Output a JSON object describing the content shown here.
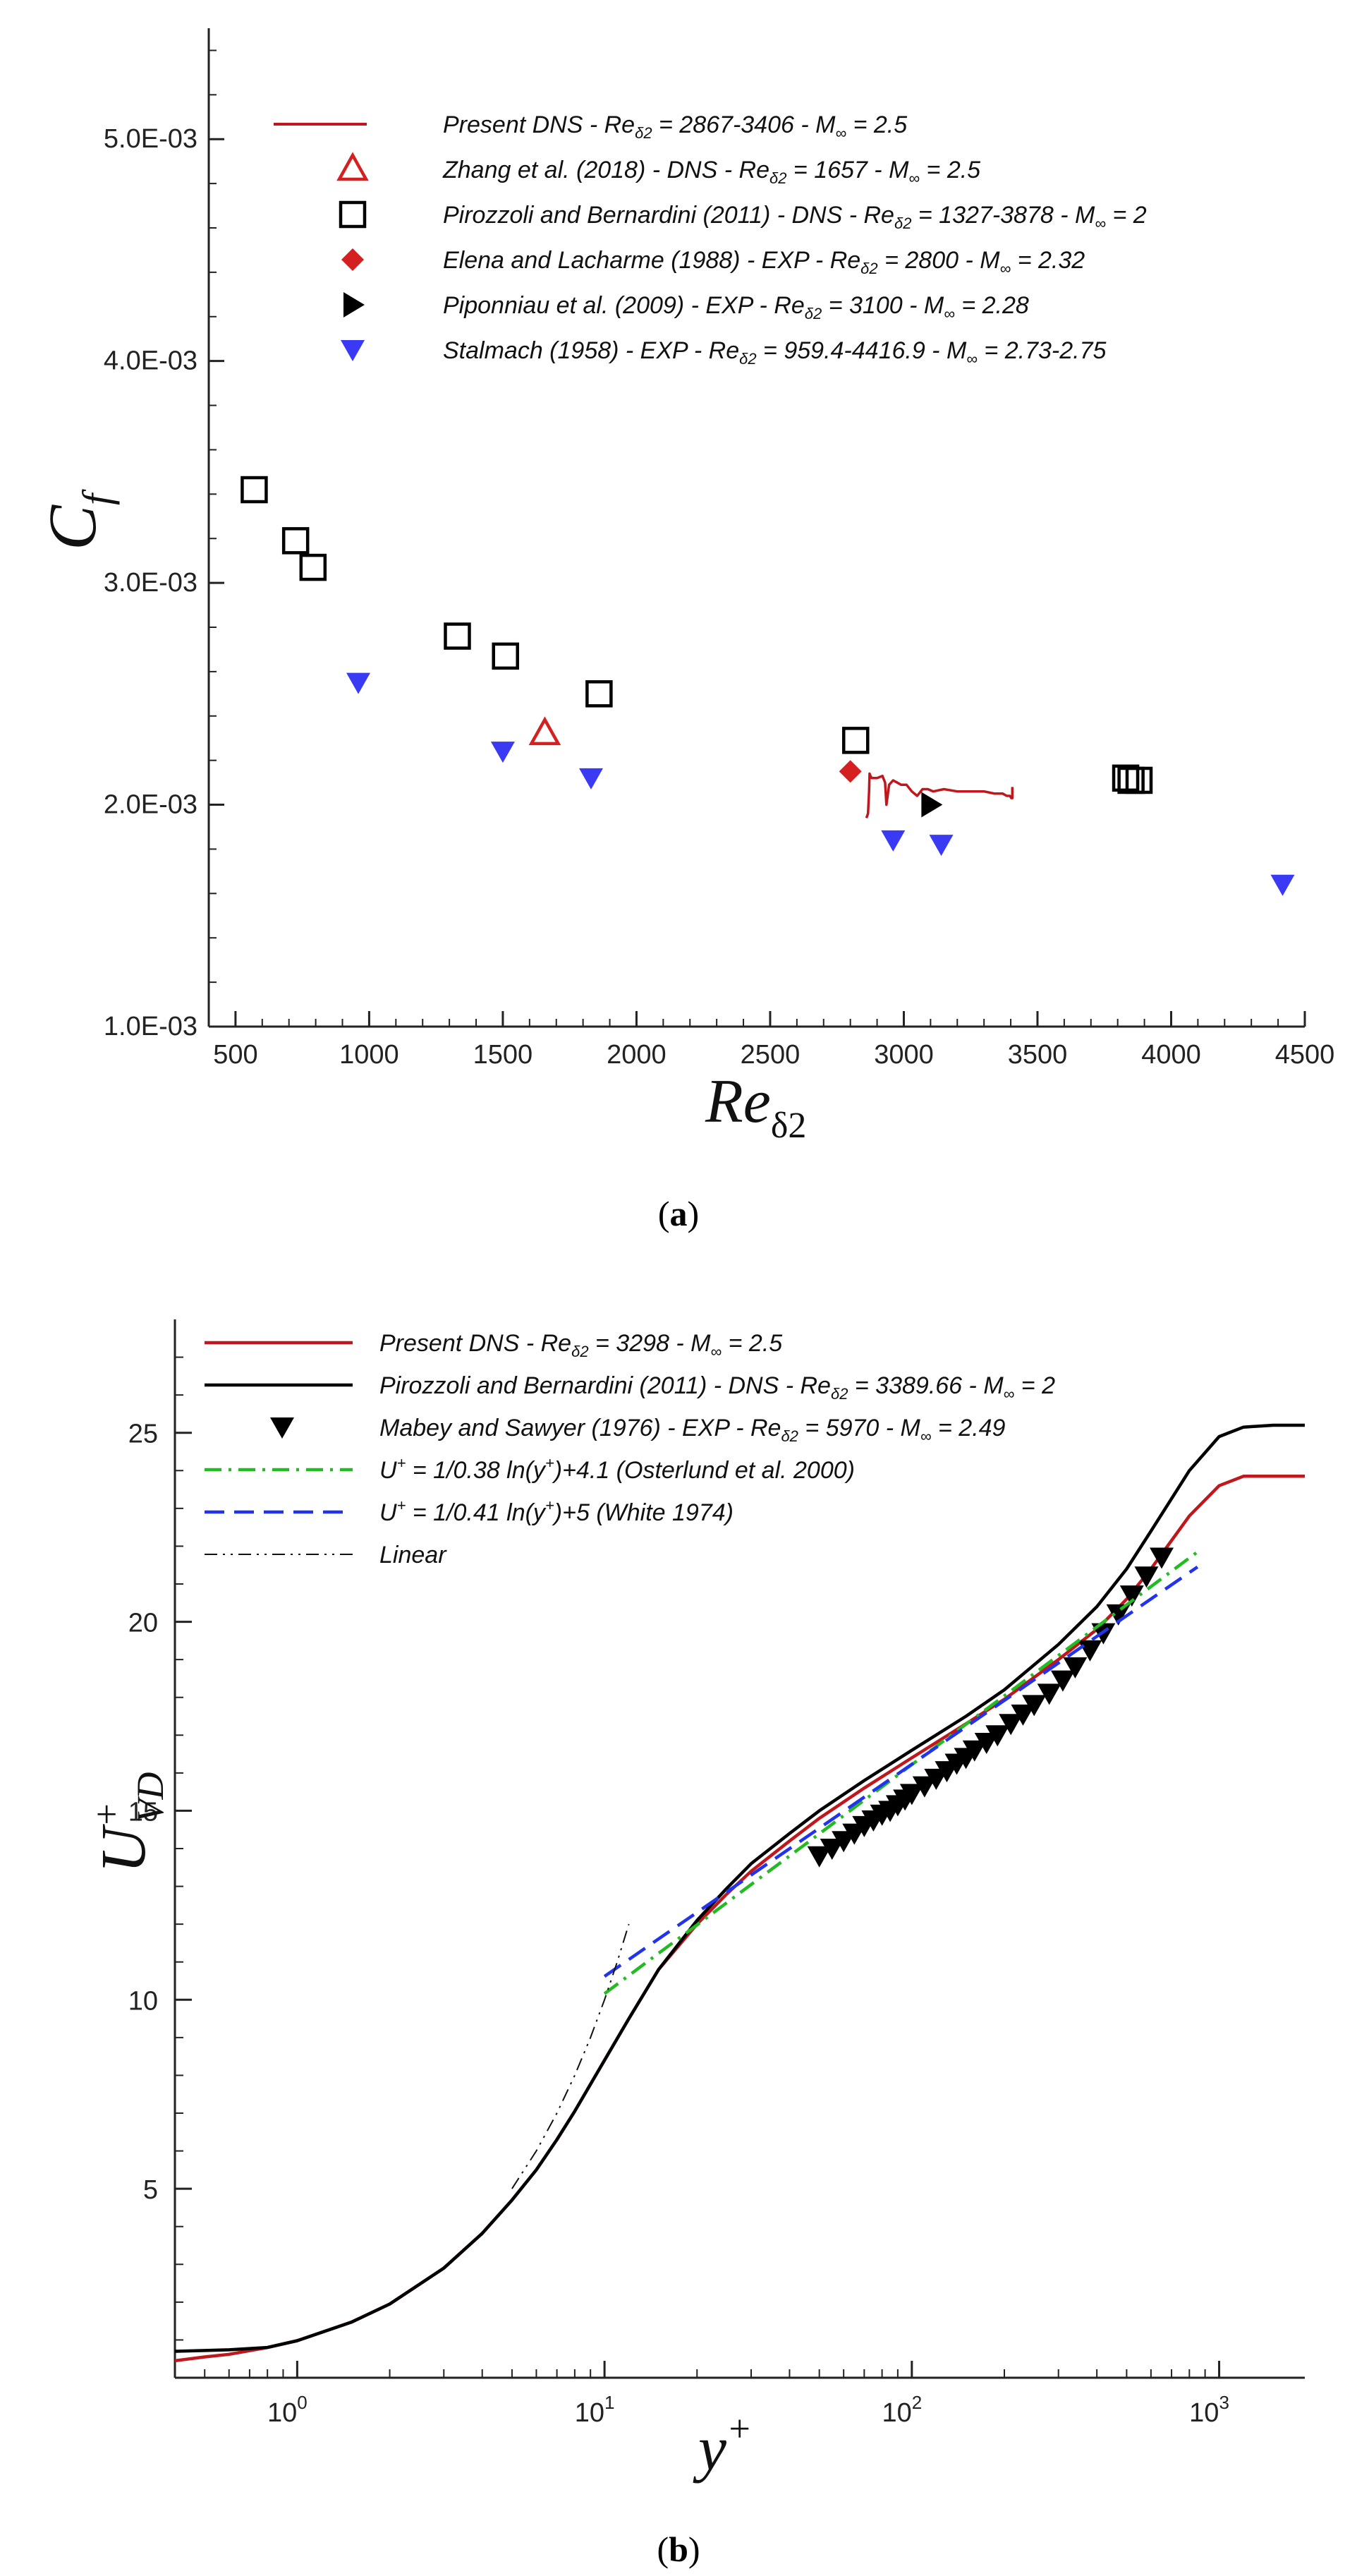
{
  "chart_data": [
    {
      "type": "scatter",
      "panel": "(a)",
      "caption_open": "(",
      "caption_letter": "a",
      "caption_close": ")",
      "title": "",
      "xlabel": "Re_δ2",
      "ylabel": "C_f",
      "xlim": [
        400,
        4500
      ],
      "ylim": [
        0.001,
        0.0055
      ],
      "xticks": [
        500,
        1000,
        1500,
        2000,
        2500,
        3000,
        3500,
        4000,
        4500
      ],
      "xtick_labels": [
        "500",
        "1000",
        "1500",
        "2000",
        "2500",
        "3000",
        "3500",
        "4000",
        "4500"
      ],
      "yticks": [
        0.001,
        0.002,
        0.003,
        0.004,
        0.005
      ],
      "ytick_labels": [
        "1.0E-03",
        "2.0E-03",
        "3.0E-03",
        "4.0E-03",
        "5.0E-03"
      ],
      "grid": false,
      "legend_position": "top",
      "series": [
        {
          "name": "Present DNS - Re_δ2 = 2867-3406 - M∞ = 2.5",
          "legend_parts": [
            "Present DNS - ",
            "Re",
            "δ2",
            " = 2867-3406 - ",
            "M",
            "∞",
            " = 2.5"
          ],
          "marker": "line",
          "color": "#c0171d",
          "x": [
            2860,
            2866,
            2870,
            2872,
            2875,
            2880,
            2890,
            2900,
            2920,
            2930,
            2935,
            2945,
            2960,
            2990,
            3010,
            3030,
            3050,
            3070,
            3090,
            3110,
            3150,
            3200,
            3250,
            3300,
            3340,
            3370,
            3385,
            3392,
            3397,
            3402,
            3406,
            3406
          ],
          "y": [
            0.00194,
            0.00196,
            0.00206,
            0.00214,
            0.00213,
            0.00212,
            0.00212,
            0.00212,
            0.00213,
            0.0021,
            0.002,
            0.00209,
            0.00211,
            0.00209,
            0.00209,
            0.00206,
            0.00204,
            0.00207,
            0.00207,
            0.00206,
            0.00207,
            0.00206,
            0.00206,
            0.00206,
            0.00205,
            0.00205,
            0.00204,
            0.00204,
            0.00204,
            0.00203,
            0.00203,
            0.00208
          ]
        },
        {
          "name": "Zhang et al. (2018) - DNS - Re_δ2 = 1657 - M∞ = 2.5",
          "legend_parts": [
            "Zhang et al. (2018) - DNS - ",
            "Re",
            "δ2",
            " = 1657 - ",
            "M",
            "∞",
            " = 2.5"
          ],
          "marker": "triangle-up-open",
          "color": "#d42020",
          "x": [
            1657
          ],
          "y": [
            0.00232
          ]
        },
        {
          "name": "Pirozzoli and Bernardini (2011) - DNS - Re_δ2 = 1327-3878 - M∞ = 2",
          "legend_parts": [
            "Pirozzoli and Bernardini (2011) - DNS - ",
            "Re",
            "δ2",
            " = 1327-3878 - ",
            "M",
            "∞",
            " = 2"
          ],
          "marker": "square-open",
          "color": "#000000",
          "x": [
            570,
            725,
            790,
            1330,
            1510,
            1860,
            2820,
            3830,
            3850,
            3880
          ],
          "y": [
            0.00342,
            0.00319,
            0.00307,
            0.00276,
            0.00267,
            0.0025,
            0.00229,
            0.00212,
            0.00211,
            0.00211
          ]
        },
        {
          "name": "Elena and Lacharme (1988) - EXP - Re_δ2 = 2800 - M∞ = 2.32",
          "legend_parts": [
            "Elena and Lacharme (1988) - EXP - ",
            "Re",
            "δ2",
            " = 2800 - ",
            "M",
            "∞",
            " = 2.32"
          ],
          "marker": "diamond-filled",
          "color": "#d42020",
          "x": [
            2800
          ],
          "y": [
            0.00215
          ]
        },
        {
          "name": "Piponniau et al. (2009) - EXP - Re_δ2 = 3100 - M∞ = 2.28",
          "legend_parts": [
            "Piponniau et al. (2009) - EXP - ",
            "Re",
            "δ2",
            " = 3100 - ",
            "M",
            "∞",
            " = 2.28"
          ],
          "marker": "triangle-right-filled",
          "color": "#000000",
          "x": [
            3100
          ],
          "y": [
            0.002
          ]
        },
        {
          "name": "Stalmach (1958) - EXP - Re_δ2 = 959.4-4416.9 - M∞ = 2.73-2.75",
          "legend_parts": [
            "Stalmach (1958) - EXP - ",
            "Re",
            "δ2",
            " = 959.4-4416.9 - ",
            "M",
            "∞",
            " = 2.73-2.75"
          ],
          "marker": "triangle-down-filled",
          "color": "#3a3af5",
          "x": [
            959.4,
            1500,
            1830,
            2960,
            3140,
            4416.9
          ],
          "y": [
            0.00255,
            0.00224,
            0.00212,
            0.00184,
            0.00182,
            0.00164
          ]
        }
      ]
    },
    {
      "type": "line",
      "panel": "(b)",
      "caption_open": "(",
      "caption_letter": "b",
      "caption_close": ")",
      "title": "",
      "xlabel": "y+",
      "ylabel": "U+_VD",
      "xscale": "log",
      "xlim": [
        0.4,
        1900
      ],
      "ylim": [
        0,
        28
      ],
      "xticks": [
        1,
        10,
        100,
        1000
      ],
      "xtick_bases": [
        "10",
        "10",
        "10",
        "10"
      ],
      "xtick_exps": [
        "0",
        "1",
        "2",
        "3"
      ],
      "yticks": [
        5,
        10,
        15,
        20,
        25
      ],
      "ytick_labels": [
        "5",
        "10",
        "15",
        "20",
        "25"
      ],
      "grid": false,
      "legend_position": "top-left",
      "series": [
        {
          "name": "Present DNS - Re_δ2 = 3298 - M∞ = 2.5",
          "legend_parts": [
            "Present DNS - ",
            "Re",
            "δ2",
            " = 3298 - ",
            "M",
            "∞",
            " = 2.5"
          ],
          "marker": "line",
          "style": "solid",
          "color": "#c0171d",
          "x": [
            0.4,
            0.5,
            0.6,
            0.8,
            1,
            1.5,
            2,
            3,
            4,
            5,
            6,
            7,
            8,
            10,
            12,
            15,
            20,
            25,
            30,
            40,
            50,
            70,
            100,
            150,
            200,
            300,
            400,
            500,
            600,
            800,
            1000,
            1200,
            1500,
            1900
          ],
          "y": [
            0.45,
            0.55,
            0.62,
            0.8,
            0.98,
            1.47,
            1.95,
            2.9,
            3.82,
            4.7,
            5.5,
            6.3,
            7.05,
            8.4,
            9.5,
            10.8,
            12.0,
            12.8,
            13.4,
            14.2,
            14.8,
            15.6,
            16.4,
            17.3,
            17.95,
            19.0,
            19.8,
            20.6,
            21.4,
            22.8,
            23.6,
            23.85,
            23.85,
            23.85
          ]
        },
        {
          "name": "Pirozzoli and Bernardini (2011) - DNS - Re_δ2 = 3389.66 - M∞ = 2",
          "legend_parts": [
            "Pirozzoli and Bernardini (2011) - DNS - ",
            "Re",
            "δ2",
            " = 3389.66 - ",
            "M",
            "∞",
            " = 2"
          ],
          "marker": "line",
          "style": "solid",
          "color": "#000000",
          "x": [
            0.4,
            0.5,
            0.6,
            0.8,
            1,
            1.5,
            2,
            3,
            4,
            5,
            6,
            7,
            8,
            10,
            12,
            15,
            20,
            25,
            30,
            40,
            50,
            70,
            100,
            150,
            200,
            300,
            400,
            500,
            600,
            800,
            1000,
            1200,
            1500,
            1900
          ],
          "y": [
            0.7,
            0.72,
            0.74,
            0.8,
            0.98,
            1.47,
            1.95,
            2.9,
            3.82,
            4.7,
            5.5,
            6.3,
            7.05,
            8.4,
            9.5,
            10.8,
            12.1,
            12.95,
            13.6,
            14.4,
            15.0,
            15.8,
            16.6,
            17.5,
            18.2,
            19.4,
            20.4,
            21.4,
            22.4,
            24.0,
            24.9,
            25.15,
            25.2,
            25.2
          ]
        },
        {
          "name": "Mabey and Sawyer (1976) - EXP - Re_δ2 = 5970 - M∞ = 2.49",
          "legend_parts": [
            "Mabey and Sawyer (1976) - EXP - ",
            "Re",
            "δ2",
            " = 5970 - ",
            "M",
            "∞",
            " = 2.49"
          ],
          "marker": "triangle-down-filled",
          "style": "none",
          "color": "#000000",
          "x": [
            50,
            55,
            60,
            65,
            70,
            75,
            80,
            85,
            90,
            95,
            100,
            110,
            120,
            130,
            140,
            150,
            160,
            175,
            190,
            210,
            230,
            250,
            280,
            310,
            340,
            380,
            420,
            470,
            520,
            580,
            650
          ],
          "y": [
            13.8,
            14.0,
            14.2,
            14.4,
            14.6,
            14.75,
            14.9,
            15.0,
            15.15,
            15.3,
            15.45,
            15.65,
            15.85,
            16.05,
            16.25,
            16.4,
            16.6,
            16.8,
            17.0,
            17.3,
            17.55,
            17.8,
            18.1,
            18.45,
            18.8,
            19.25,
            19.7,
            20.2,
            20.7,
            21.2,
            21.7
          ]
        },
        {
          "name": "U+ = 1/0.38 ln(y+)+4.1 (Osterlund et al. 2000)",
          "legend_parts": [
            "U",
            "+",
            " = 1/0.38 ln(y",
            "+",
            ")+4.1 (Osterlund et al. 2000)"
          ],
          "marker": "line",
          "style": "dashdot",
          "color": "#22bb22",
          "x": [
            10,
            15,
            20,
            30,
            50,
            70,
            100,
            150,
            200,
            300,
            500,
            850
          ],
          "y": [
            10.16,
            11.23,
            11.98,
            13.05,
            14.39,
            15.28,
            16.22,
            17.29,
            18.04,
            19.11,
            20.45,
            21.85
          ]
        },
        {
          "name": "U+ = 1/0.41 ln(y+)+5 (White 1974)",
          "legend_parts": [
            "U",
            "+",
            " = 1/0.41 ln(y",
            "+",
            ")+5 (White 1974)"
          ],
          "marker": "line",
          "style": "dashed",
          "color": "#2233ee",
          "x": [
            10,
            15,
            20,
            30,
            50,
            70,
            100,
            150,
            200,
            300,
            500,
            850
          ],
          "y": [
            10.62,
            11.61,
            12.31,
            13.3,
            14.54,
            15.36,
            16.23,
            17.22,
            17.92,
            18.91,
            20.16,
            21.45
          ]
        },
        {
          "name": "Linear",
          "legend_parts": [
            "Linear"
          ],
          "marker": "line",
          "style": "dashdotdot",
          "color": "#111111",
          "x": [
            5,
            6,
            7,
            8,
            9,
            10,
            11,
            12
          ],
          "y": [
            5,
            6,
            7,
            8,
            9,
            10,
            11,
            12
          ]
        }
      ]
    }
  ]
}
